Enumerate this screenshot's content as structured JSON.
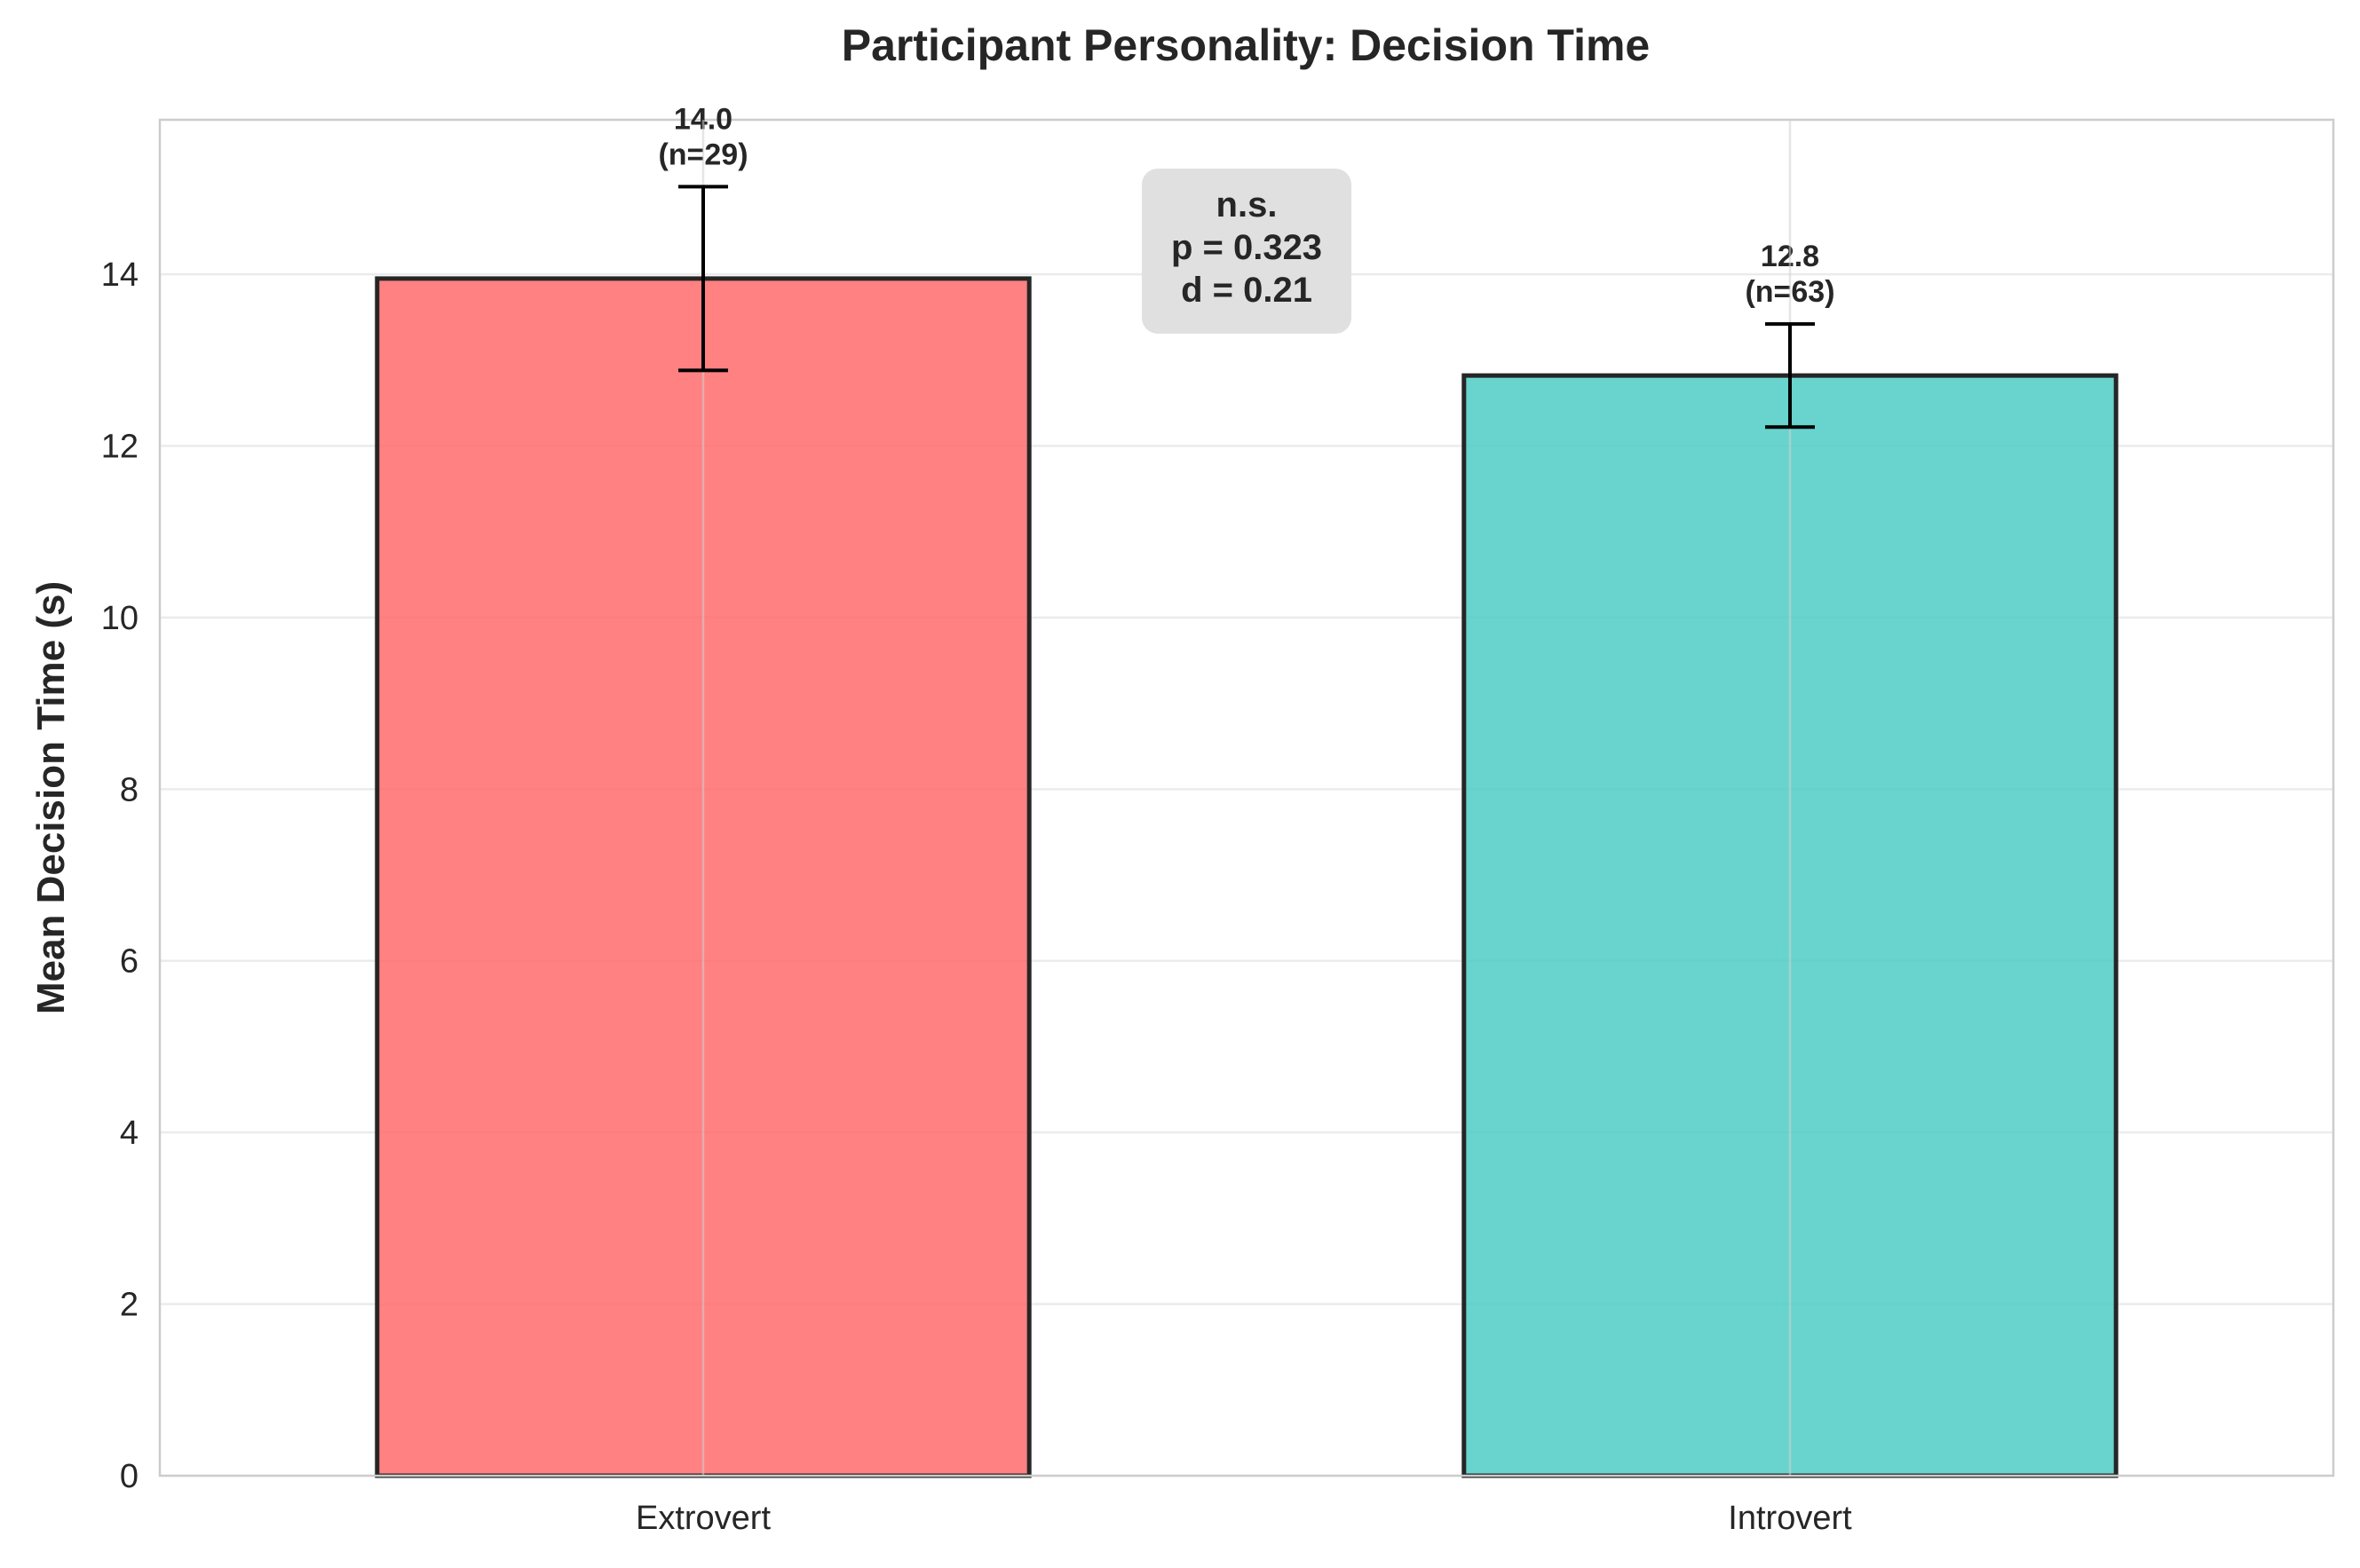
{
  "chart_data": {
    "type": "bar",
    "title": "Participant Personality: Decision Time",
    "xlabel": "",
    "ylabel": "Mean Decision Time (s)",
    "categories": [
      "Extrovert",
      "Introvert"
    ],
    "values": [
      13.95,
      12.82
    ],
    "errors": [
      1.07,
      0.6
    ],
    "bar_labels": [
      [
        "14.0",
        "(n=29)"
      ],
      [
        "12.8",
        "(n=63)"
      ]
    ],
    "colors": [
      "#ff6b6b",
      "#4ecdc4"
    ],
    "ylim": [
      0,
      15.8
    ],
    "yticks": [
      0,
      2,
      4,
      6,
      8,
      10,
      12,
      14
    ],
    "grid": true,
    "annotation": [
      "n.s.",
      "p = 0.323",
      "d = 0.21"
    ]
  }
}
